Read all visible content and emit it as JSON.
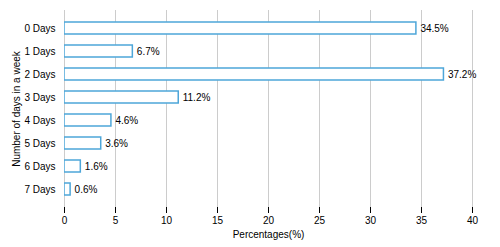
{
  "chart_data": {
    "type": "bar",
    "orientation": "horizontal",
    "categories": [
      "0 Days",
      "1 Days",
      "2 Days",
      "3 Days",
      "4 Days",
      "5 Days",
      "6 Days",
      "7 Days"
    ],
    "values": [
      34.5,
      6.7,
      37.2,
      11.2,
      4.6,
      3.6,
      1.6,
      0.6
    ],
    "value_labels": [
      "34.5%",
      "6.7%",
      "37.2%",
      "11.2%",
      "4.6%",
      "3.6%",
      "1.6%",
      "0.6%"
    ],
    "data_labels": true,
    "color": "#4da6d9",
    "xlabel": "Percentages(%)",
    "ylabel": "Number of days in a week",
    "xlim": [
      0,
      40
    ],
    "xticks": [
      0,
      5,
      10,
      15,
      20,
      25,
      30,
      35,
      40
    ],
    "grid": true
  }
}
